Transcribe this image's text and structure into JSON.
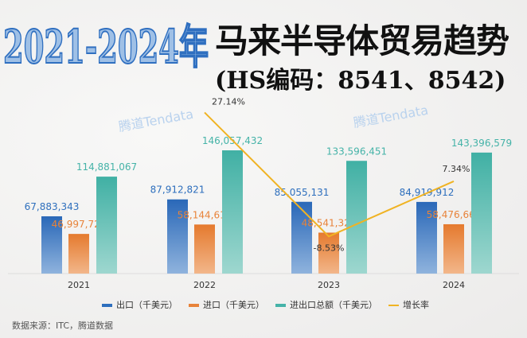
{
  "title_year": "2021-2024年",
  "title_main": "马来半导体贸易趋势",
  "title_sub": "(HS编码：8541、8542)",
  "watermark": "腾道Tendata",
  "source": "数据来源：ITC，腾道数据",
  "colors": {
    "export": "#2e6fbd",
    "import": "#e8833a",
    "total": "#45b3a8",
    "growth": "#f0b323"
  },
  "chart_data": {
    "type": "bar",
    "categories": [
      "2021",
      "2022",
      "2023",
      "2024"
    ],
    "series": [
      {
        "name": "出口（千美元）",
        "values": [
          67883343,
          87912821,
          85055131,
          84919912
        ],
        "labels": [
          "67,883,343",
          "87,912,821",
          "85,055,131",
          "84,919,912"
        ]
      },
      {
        "name": "进口（千美元）",
        "values": [
          46997724,
          58144611,
          48541320,
          58476667
        ],
        "labels": [
          "46,997,724",
          "58,144,611",
          "48,541,320",
          "58,476,667"
        ]
      },
      {
        "name": "进出口总额（千美元）",
        "values": [
          114881067,
          146057432,
          133596451,
          143396579
        ],
        "labels": [
          "114,881,067",
          "146,057,432",
          "133,596,451",
          "143,396,579"
        ]
      },
      {
        "name": "增长率",
        "type": "line",
        "x": [
          "2022",
          "2023",
          "2024"
        ],
        "values": [
          27.14,
          -8.53,
          7.34
        ],
        "labels": [
          "27.14%",
          "-8.53%",
          "7.34%"
        ]
      }
    ],
    "legend": "bottom",
    "grid": false
  }
}
